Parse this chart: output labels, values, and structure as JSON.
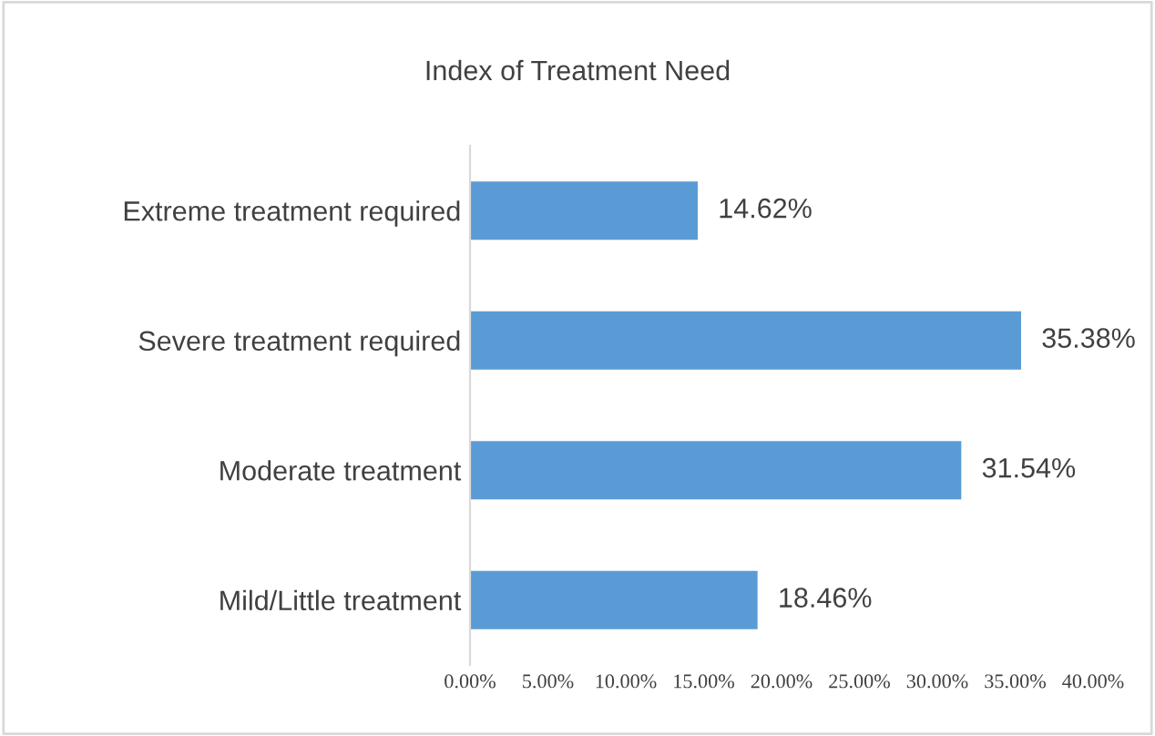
{
  "chart_data": {
    "type": "bar",
    "orientation": "horizontal",
    "title": "Index of Treatment Need",
    "categories": [
      "Extreme treatment required",
      "Severe treatment required",
      "Moderate treatment",
      "Mild/Little treatment"
    ],
    "values": [
      14.62,
      35.38,
      31.54,
      18.46
    ],
    "value_labels": [
      "14.62%",
      "35.38%",
      "31.54%",
      "18.46%"
    ],
    "color": "#5b9bd5",
    "xlim": [
      0,
      40
    ],
    "xticks": [
      {
        "value": 0,
        "label": "0.00%"
      },
      {
        "value": 5,
        "label": "5.00%"
      },
      {
        "value": 10,
        "label": "10.00%"
      },
      {
        "value": 15,
        "label": "15.00%"
      },
      {
        "value": 20,
        "label": "20.00%"
      },
      {
        "value": 25,
        "label": "25.00%"
      },
      {
        "value": 30,
        "label": "30.00%"
      },
      {
        "value": 35,
        "label": "35.00%"
      },
      {
        "value": 40,
        "label": "40.00%"
      }
    ],
    "grid": false,
    "legend": false
  }
}
